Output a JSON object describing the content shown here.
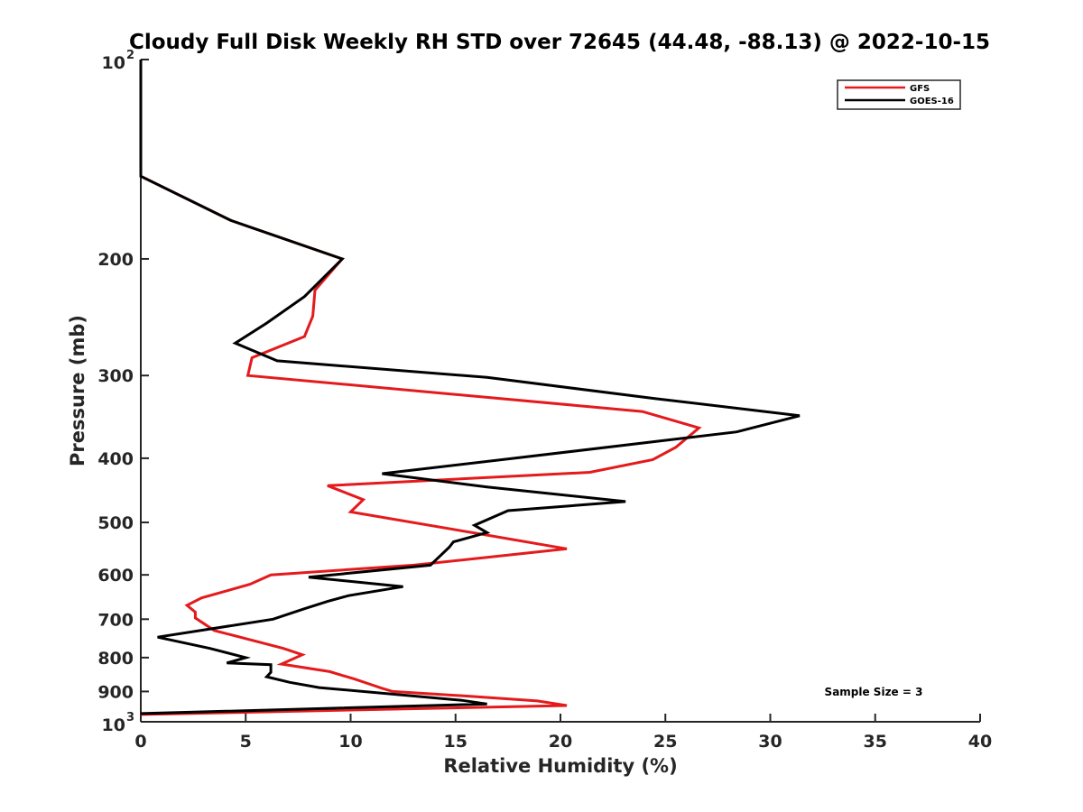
{
  "chart_data": {
    "type": "line",
    "title": "Cloudy Full Disk Weekly RH STD over 72645 (44.48, -88.13) @ 2022-10-15",
    "xlabel": "Relative Humidity (%)",
    "ylabel": "Pressure (mb)",
    "xlim": [
      0,
      40
    ],
    "ylim": [
      100,
      1000
    ],
    "y_scale": "log",
    "y_reversed": true,
    "grid": false,
    "legend_position": "top-right",
    "annotation": "Sample Size = 3",
    "x_ticks": [
      0,
      5,
      10,
      15,
      20,
      25,
      30,
      35,
      40
    ],
    "y_ticks": [
      {
        "value": 100,
        "base": "10",
        "exp": "2"
      },
      {
        "value": 200,
        "label": "200"
      },
      {
        "value": 300,
        "label": "300"
      },
      {
        "value": 400,
        "label": "400"
      },
      {
        "value": 500,
        "label": "500"
      },
      {
        "value": 600,
        "label": "600"
      },
      {
        "value": 700,
        "label": "700"
      },
      {
        "value": 800,
        "label": "800"
      },
      {
        "value": 900,
        "label": "900"
      },
      {
        "value": 1000,
        "base": "10",
        "exp": "3"
      }
    ],
    "series": [
      {
        "name": "GFS",
        "color": "#e41a1c",
        "points": [
          [
            0,
            100
          ],
          [
            0,
            150
          ],
          [
            4.3,
            175
          ],
          [
            9.6,
            200
          ],
          [
            8.3,
            223
          ],
          [
            8.2,
            244
          ],
          [
            7.8,
            262
          ],
          [
            5.3,
            282
          ],
          [
            5.1,
            300
          ],
          [
            23.9,
            340
          ],
          [
            26.6,
            360
          ],
          [
            25.5,
            385
          ],
          [
            24.4,
            402
          ],
          [
            21.4,
            420
          ],
          [
            8.9,
            440
          ],
          [
            10.6,
            462
          ],
          [
            10.0,
            482
          ],
          [
            16.1,
            520
          ],
          [
            20.3,
            548
          ],
          [
            16.4,
            565
          ],
          [
            13.0,
            580
          ],
          [
            6.2,
            600
          ],
          [
            5.2,
            620
          ],
          [
            2.9,
            650
          ],
          [
            2.2,
            667
          ],
          [
            2.6,
            683
          ],
          [
            2.6,
            697
          ],
          [
            3.5,
            728
          ],
          [
            6.8,
            775
          ],
          [
            7.7,
            792
          ],
          [
            6.7,
            818
          ],
          [
            9.0,
            840
          ],
          [
            10.2,
            862
          ],
          [
            11.5,
            890
          ],
          [
            12.0,
            900
          ],
          [
            15.7,
            915
          ],
          [
            18.9,
            930
          ],
          [
            20.3,
            945
          ],
          [
            0,
            975
          ]
        ]
      },
      {
        "name": "GOES-16",
        "color": "#000000",
        "points": [
          [
            0,
            100
          ],
          [
            0,
            150
          ],
          [
            4.3,
            175
          ],
          [
            9.6,
            200
          ],
          [
            7.8,
            228
          ],
          [
            6.0,
            250
          ],
          [
            4.5,
            268
          ],
          [
            6.5,
            285
          ],
          [
            16.5,
            302
          ],
          [
            24.5,
            325
          ],
          [
            31.4,
            345
          ],
          [
            28.4,
            365
          ],
          [
            17.8,
            400
          ],
          [
            11.5,
            422
          ],
          [
            16.5,
            442
          ],
          [
            23.1,
            465
          ],
          [
            17.5,
            480
          ],
          [
            15.9,
            505
          ],
          [
            16.5,
            518
          ],
          [
            14.9,
            535
          ],
          [
            14.7,
            545
          ],
          [
            13.8,
            580
          ],
          [
            8.0,
            605
          ],
          [
            12.5,
            625
          ],
          [
            9.9,
            645
          ],
          [
            8.9,
            658
          ],
          [
            7.8,
            675
          ],
          [
            6.3,
            700
          ],
          [
            0.8,
            745
          ],
          [
            3.3,
            775
          ],
          [
            5.0,
            800
          ],
          [
            4.1,
            815
          ],
          [
            6.2,
            820
          ],
          [
            6.2,
            842
          ],
          [
            6.0,
            855
          ],
          [
            7.1,
            872
          ],
          [
            8.5,
            888
          ],
          [
            15.3,
            928
          ],
          [
            16.5,
            940
          ],
          [
            0,
            972
          ]
        ]
      }
    ]
  }
}
